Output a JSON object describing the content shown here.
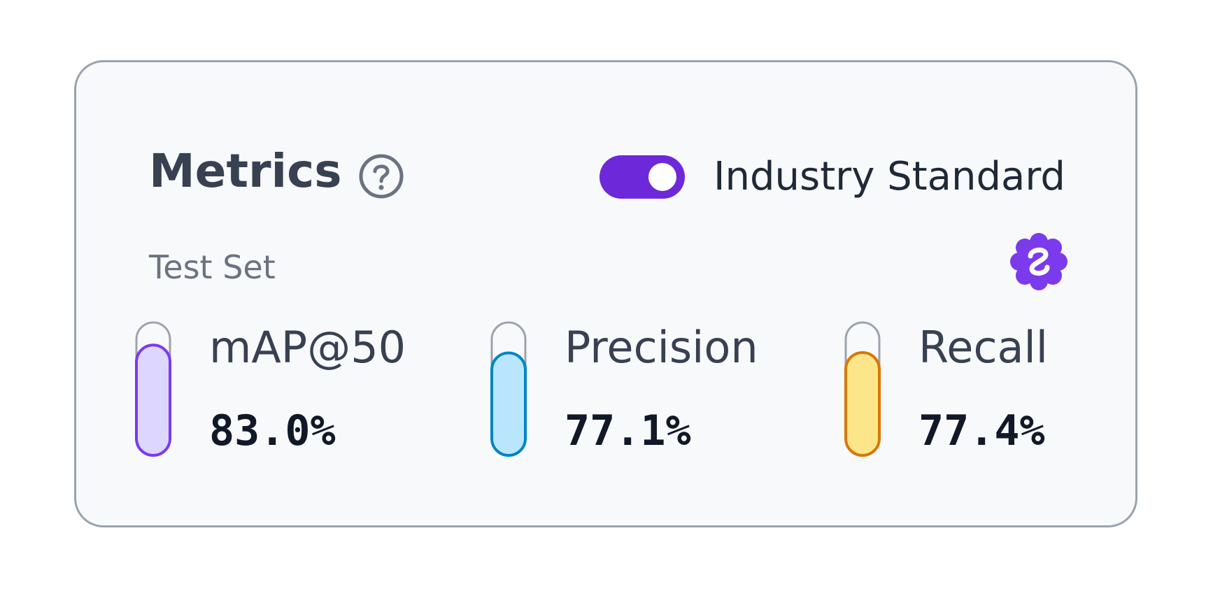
{
  "card": {
    "title": "Metrics",
    "help_icon": "question-circle-icon",
    "toggle": {
      "label": "Industry Standard",
      "on": true,
      "color": "#6d28d9"
    },
    "subtitle": "Test Set",
    "badge_icon": "verified-badge-icon",
    "badge_color": "#7c3aed",
    "metrics": [
      {
        "label": "mAP@50",
        "value": "83.0%",
        "level": 0.83,
        "stroke": "#7c3aed",
        "fill": "#ddd6fe"
      },
      {
        "label": "Precision",
        "value": "77.1%",
        "level": 0.771,
        "stroke": "#0284c7",
        "fill": "#bae6fd"
      },
      {
        "label": "Recall",
        "value": "77.4%",
        "level": 0.774,
        "stroke": "#d97706",
        "fill": "#fde68a"
      }
    ]
  }
}
